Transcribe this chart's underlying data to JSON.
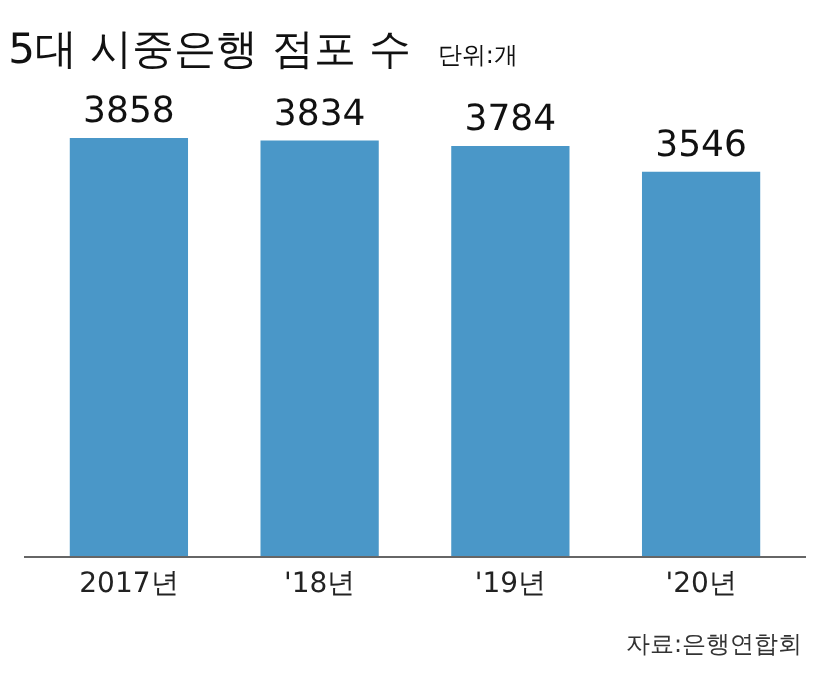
{
  "chart_data": {
    "type": "bar",
    "title": "5대 시중은행 점포 수",
    "subtitle": "단위:개",
    "categories": [
      "2017년",
      "'18년",
      "'19년",
      "'20년"
    ],
    "values": [
      3858,
      3834,
      3784,
      3546
    ],
    "color": "#4a97c8",
    "data_labels": true,
    "tick_labels": "x",
    "legend": false,
    "annotations": [
      "자료:은행연합회"
    ]
  }
}
